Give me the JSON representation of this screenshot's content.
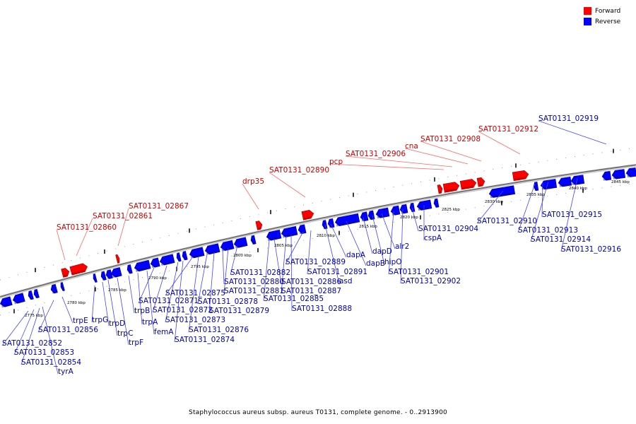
{
  "legend": {
    "forward_label": "Forward",
    "reverse_label": "Reverse",
    "forward_color": "#ff0000",
    "reverse_color": "#0000ff"
  },
  "caption": "Staphylococcus aureus subsp. aureus T0131, complete genome. - 0..2913900",
  "ticks": [
    "2775 kbp",
    "2780 kbp",
    "2785 kbp",
    "2790 kbp",
    "2795 kbp",
    "2800 kbp",
    "2805 kbp",
    "2810 kbp",
    "2815 kbp",
    "2820 kbp",
    "2825 kbp",
    "2830 kbp",
    "2835 kbp",
    "2840 kbp",
    "2845 kbp"
  ],
  "forward_genes": [
    "SAT0131_02860",
    "SAT0131_02861",
    "SAT0131_02867",
    "drp35",
    "SAT0131_02890",
    "pcp",
    "SAT0131_02906",
    "cna",
    "SAT0131_02908",
    "SAT0131_02912"
  ],
  "reverse_genes": [
    "SAT0131_02852",
    "SAT0131_02853",
    "SAT0131_02854",
    "tyrA",
    "SAT0131_02856",
    "trpE",
    "trpG",
    "trpD",
    "trpC",
    "trpF",
    "trpB",
    "trpA",
    "femA",
    "SAT0131_02871",
    "SAT0131_02872",
    "SAT0131_02873",
    "SAT0131_02874",
    "SAT0131_02875",
    "SAT0131_02876",
    "SAT0131_02878",
    "SAT0131_02879",
    "SAT0131_02880",
    "SAT0131_02881",
    "SAT0131_02882",
    "SAT0131_02885",
    "SAT0131_02886",
    "SAT0131_02887",
    "SAT0131_02888",
    "SAT0131_02889",
    "SAT0131_02891",
    "asd",
    "dapA",
    "dapB",
    "dapD",
    "hipO",
    "alr2",
    "SAT0131_02901",
    "SAT0131_02902",
    "SAT0131_02904",
    "cspA",
    "SAT0131_02910",
    "SAT0131_02913",
    "SAT0131_02914",
    "SAT0131_02915",
    "SAT0131_02916",
    "SAT0131_02919"
  ]
}
